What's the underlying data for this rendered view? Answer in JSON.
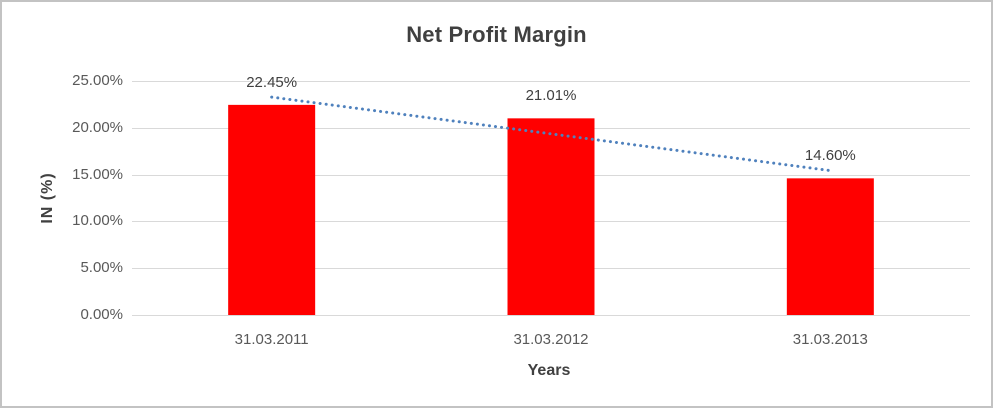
{
  "chart_data": {
    "type": "bar",
    "title": "Net Profit Margin",
    "xlabel": "Years",
    "ylabel": "IN (%)",
    "categories": [
      "31.03.2011",
      "31.03.2012",
      "31.03.2013"
    ],
    "values": [
      22.45,
      21.01,
      14.6
    ],
    "data_labels": [
      "22.45%",
      "21.01%",
      "14.60%"
    ],
    "ylim": [
      0,
      25
    ],
    "ytick_step": 5,
    "ytick_labels": [
      "0.00%",
      "5.00%",
      "10.00%",
      "15.00%",
      "20.00%",
      "25.00%"
    ],
    "grid": true,
    "legend": false,
    "series_name": "Net Profit Margin",
    "trendline": {
      "type": "linear",
      "style": "dotted"
    },
    "colors": {
      "bar": "#ff0000",
      "trendline": "#4f81bd",
      "gridline": "#d9d9d9",
      "axis_line": "#d9d9d9",
      "tick_text": "#595959",
      "title_text": "#404040",
      "frame_border": "#c3c3c3"
    }
  }
}
